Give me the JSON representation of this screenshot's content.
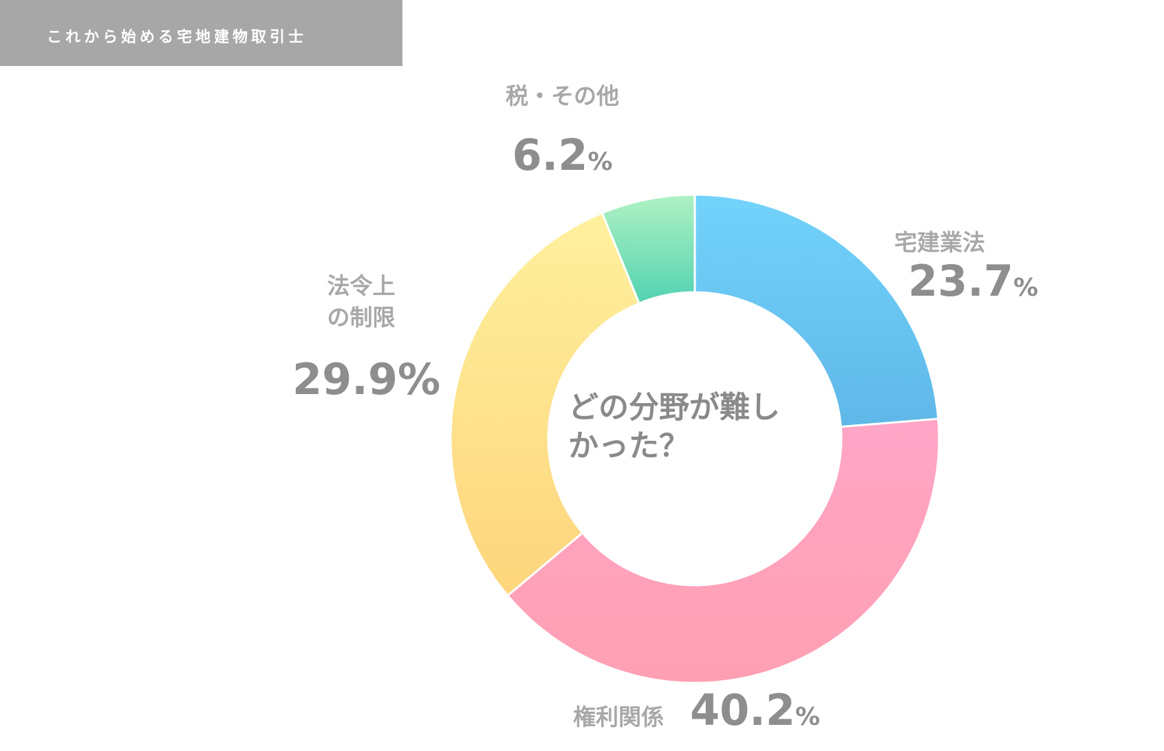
{
  "header": {
    "site_title": "これから始める宅地建物取引士"
  },
  "chart_data": {
    "type": "pie",
    "donut": true,
    "title": "どの分野が難しかった？",
    "title_lines": [
      "どの分野が難し",
      "かった？"
    ],
    "legend": "none",
    "unit": "%",
    "slices": [
      {
        "label": "宅建業法",
        "label_lines": [
          "宅建業法"
        ],
        "value": 23.7,
        "value_text": "23.7",
        "color_top": "#72d3fb",
        "color_bottom": "#5fb7e8"
      },
      {
        "label": "権利関係",
        "label_lines": [
          "権利関係"
        ],
        "value": 40.2,
        "value_text": "40.2",
        "color_top": "#ffa5c6",
        "color_bottom": "#ff9fb2"
      },
      {
        "label": "法令上の制限",
        "label_lines": [
          "法令上",
          "の制限"
        ],
        "value": 29.9,
        "value_text": "29.9",
        "color_top": "#fff09e",
        "color_bottom": "#fdd57c"
      },
      {
        "label": "税・その他",
        "label_lines": [
          "税・その他"
        ],
        "value": 6.2,
        "value_text": "6.2",
        "color_top": "#b0f2c3",
        "color_bottom": "#52d2b1"
      }
    ]
  }
}
